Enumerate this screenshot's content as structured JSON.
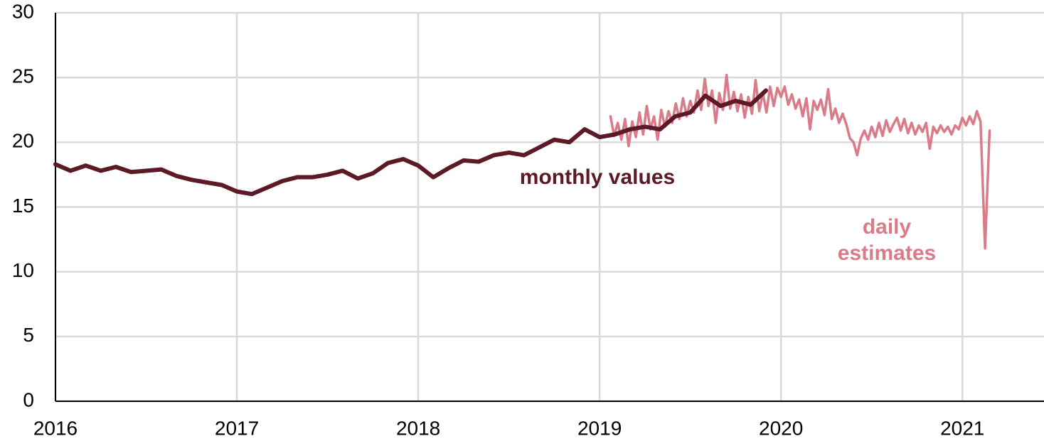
{
  "chart_data": {
    "type": "line",
    "xlim": [
      2016,
      2021.45
    ],
    "xticks": [
      2016,
      2017,
      2018,
      2019,
      2020,
      2021
    ],
    "ylim": [
      0,
      30
    ],
    "yticks": [
      0,
      5,
      10,
      15,
      20,
      25,
      30
    ],
    "grid": true,
    "series": [
      {
        "color": "#5b1a25",
        "x": [
          2016,
          2016.083,
          2016.167,
          2016.25,
          2016.333,
          2016.417,
          2016.5,
          2016.583,
          2016.667,
          2016.75,
          2016.833,
          2016.917,
          2017,
          2017.083,
          2017.167,
          2017.25,
          2017.333,
          2017.417,
          2017.5,
          2017.583,
          2017.667,
          2017.75,
          2017.833,
          2017.917,
          2018,
          2018.083,
          2018.167,
          2018.25,
          2018.333,
          2018.417,
          2018.5,
          2018.583,
          2018.667,
          2018.75,
          2018.833,
          2018.917,
          2019,
          2019.083,
          2019.167,
          2019.25,
          2019.333,
          2019.417,
          2019.5,
          2019.583,
          2019.667,
          2019.75,
          2019.833,
          2019.917
        ],
        "values": [
          18.3,
          17.8,
          18.2,
          17.8,
          18.1,
          17.7,
          17.8,
          17.9,
          17.4,
          17.1,
          16.9,
          16.7,
          16.2,
          16.0,
          16.5,
          17.0,
          17.3,
          17.3,
          17.5,
          17.8,
          17.2,
          17.6,
          18.4,
          18.7,
          18.2,
          17.3,
          18.0,
          18.6,
          18.5,
          19.0,
          19.2,
          19.0,
          19.6,
          20.2,
          20.0,
          21.0,
          20.4,
          20.6,
          21.0,
          21.2,
          21.0,
          22.0,
          22.3,
          23.6,
          22.8,
          23.2,
          22.9,
          24.0
        ]
      },
      {
        "color": "#d97b88",
        "x": [
          2019.06,
          2019.08,
          2019.1,
          2019.12,
          2019.14,
          2019.16,
          2019.18,
          2019.2,
          2019.22,
          2019.24,
          2019.26,
          2019.28,
          2019.3,
          2019.32,
          2019.34,
          2019.36,
          2019.38,
          2019.4,
          2019.42,
          2019.44,
          2019.46,
          2019.48,
          2019.5,
          2019.52,
          2019.54,
          2019.56,
          2019.58,
          2019.6,
          2019.62,
          2019.64,
          2019.66,
          2019.68,
          2019.7,
          2019.72,
          2019.74,
          2019.76,
          2019.78,
          2019.8,
          2019.82,
          2019.84,
          2019.86,
          2019.88,
          2019.9,
          2019.92,
          2019.94,
          2019.96,
          2019.98,
          2020.0,
          2020.02,
          2020.04,
          2020.06,
          2020.08,
          2020.1,
          2020.12,
          2020.14,
          2020.16,
          2020.18,
          2020.2,
          2020.22,
          2020.24,
          2020.26,
          2020.28,
          2020.3,
          2020.32,
          2020.34,
          2020.36,
          2020.38,
          2020.4,
          2020.42,
          2020.44,
          2020.46,
          2020.48,
          2020.5,
          2020.52,
          2020.54,
          2020.56,
          2020.58,
          2020.6,
          2020.62,
          2020.64,
          2020.66,
          2020.68,
          2020.7,
          2020.72,
          2020.74,
          2020.76,
          2020.78,
          2020.8,
          2020.82,
          2020.84,
          2020.86,
          2020.88,
          2020.9,
          2020.92,
          2020.94,
          2020.96,
          2020.98,
          2021.0,
          2021.02,
          2021.04,
          2021.06,
          2021.08,
          2021.1,
          2021.125,
          2021.15
        ],
        "values": [
          22.0,
          20.5,
          21.5,
          20.2,
          21.8,
          19.7,
          21.6,
          20.4,
          22.3,
          20.6,
          22.8,
          21.0,
          22.0,
          20.2,
          22.5,
          21.2,
          22.4,
          21.5,
          23.0,
          21.8,
          23.4,
          22.0,
          23.2,
          22.3,
          24.0,
          22.5,
          24.9,
          22.8,
          24.0,
          21.5,
          23.8,
          22.5,
          25.2,
          22.6,
          23.9,
          22.4,
          23.7,
          21.9,
          23.5,
          22.2,
          24.8,
          22.4,
          23.8,
          22.3,
          24.3,
          22.8,
          24.2,
          23.5,
          24.3,
          22.9,
          23.7,
          22.6,
          23.3,
          22.0,
          23.4,
          21.0,
          23.2,
          22.5,
          23.3,
          22.1,
          24.1,
          21.8,
          22.6,
          21.5,
          22.2,
          21.4,
          20.3,
          20.0,
          19.0,
          20.3,
          20.9,
          20.2,
          21.2,
          20.4,
          21.5,
          20.5,
          21.7,
          20.8,
          21.4,
          21.9,
          20.9,
          21.8,
          20.7,
          21.5,
          20.6,
          21.3,
          20.8,
          21.5,
          19.5,
          21.2,
          20.7,
          21.3,
          20.8,
          21.2,
          20.6,
          21.3,
          21.0,
          21.9,
          21.3,
          22.0,
          21.4,
          22.4,
          21.6,
          11.8,
          20.9
        ]
      }
    ],
    "annotations": [
      {
        "lines": [
          "monthly values"
        ]
      },
      {
        "lines": [
          "daily",
          "estimates"
        ]
      }
    ]
  }
}
